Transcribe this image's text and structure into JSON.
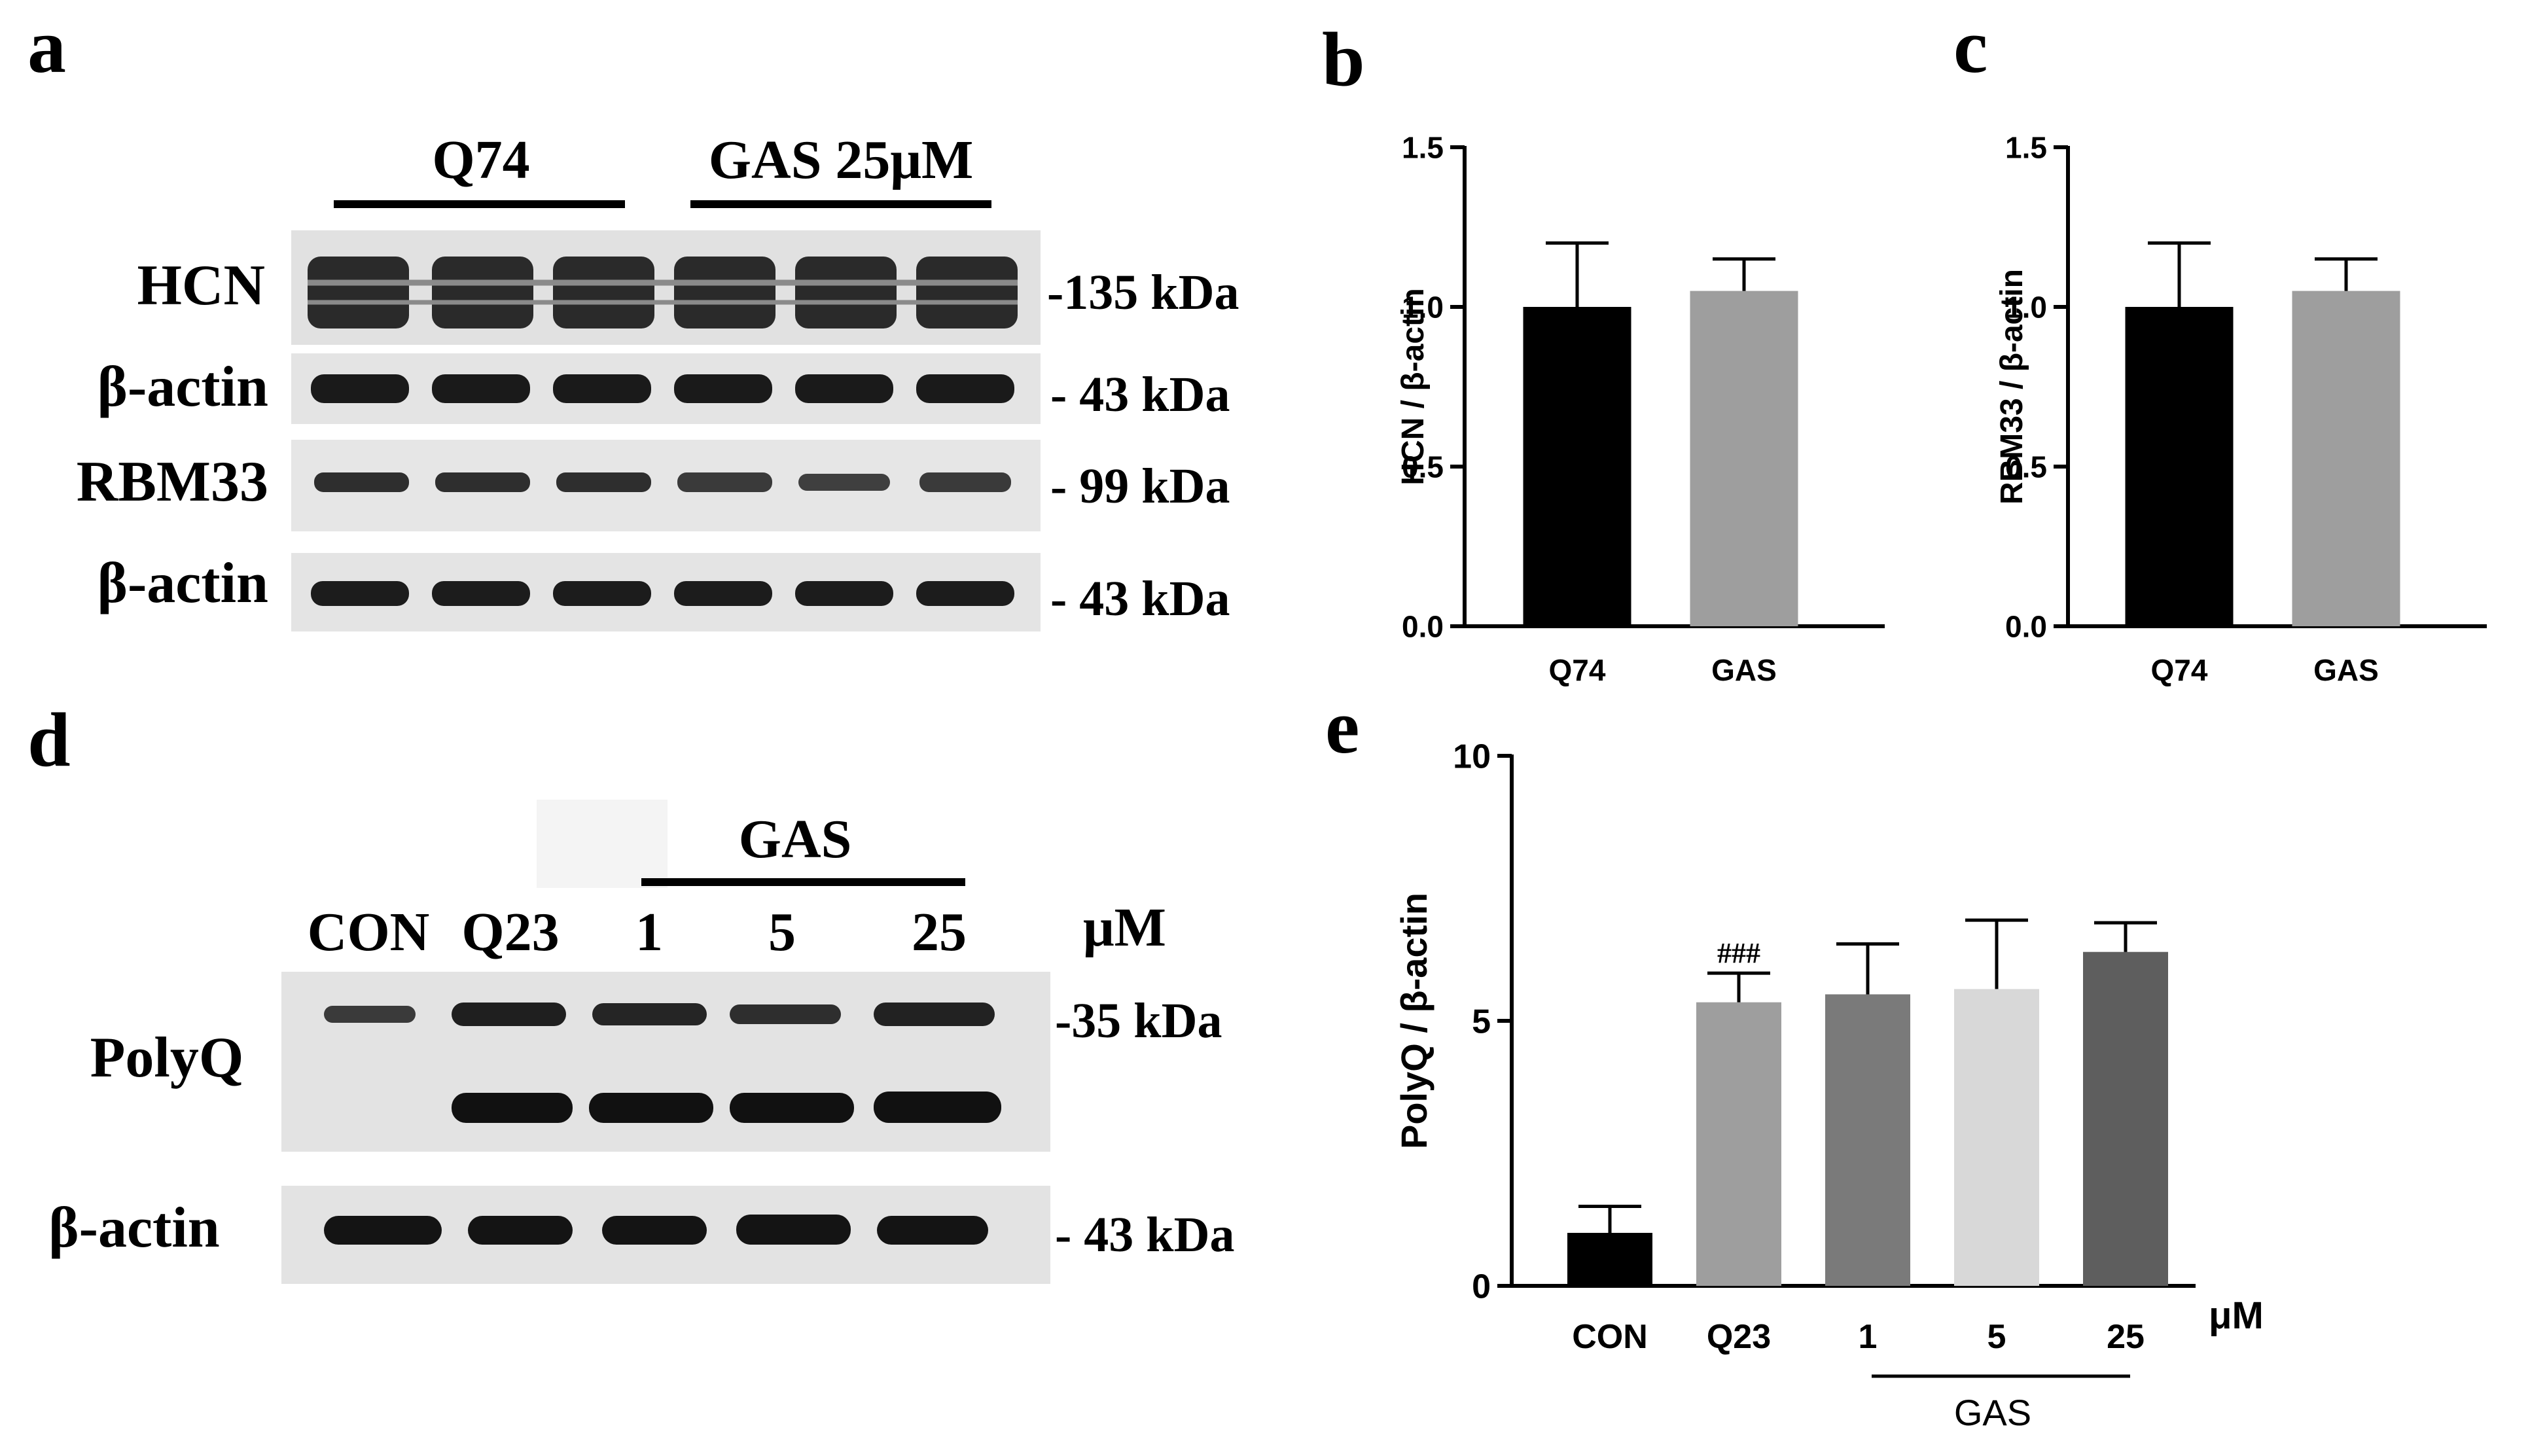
{
  "panel_letters": {
    "a": "a",
    "b": "b",
    "c": "c",
    "d": "d",
    "e": "e"
  },
  "blot_a": {
    "groups": [
      "Q74",
      "GAS 25μM"
    ],
    "rows": [
      {
        "label": "HCN",
        "marker": "-135 kDa"
      },
      {
        "label": "β-actin",
        "marker": "- 43 kDa"
      },
      {
        "label": "RBM33",
        "marker": "- 99 kDa"
      },
      {
        "label": "β-actin",
        "marker": "- 43 kDa"
      }
    ]
  },
  "blot_d": {
    "group_label": "GAS",
    "lanes": [
      "CON",
      "Q23",
      "1",
      "5",
      "25"
    ],
    "unit": "μM",
    "rows": [
      {
        "label": "PolyQ",
        "marker": "-35 kDa"
      },
      {
        "label": "β-actin",
        "marker": "- 43 kDa"
      }
    ]
  },
  "chart_data": [
    {
      "panel": "b",
      "type": "bar",
      "categories": [
        "Q74",
        "GAS"
      ],
      "values": [
        1.0,
        1.05
      ],
      "errors": [
        0.2,
        0.1
      ],
      "colors": [
        "#000000",
        "#9e9e9e"
      ],
      "ylabel": "HCN / β-actin",
      "ylim": [
        0,
        1.5
      ],
      "yticks": [
        "0.0",
        "0.5",
        "1.0",
        "1.5"
      ]
    },
    {
      "panel": "c",
      "type": "bar",
      "categories": [
        "Q74",
        "GAS"
      ],
      "values": [
        1.0,
        1.05
      ],
      "errors": [
        0.2,
        0.1
      ],
      "colors": [
        "#000000",
        "#9e9e9e"
      ],
      "ylabel": "RBM33 / β-actin",
      "ylim": [
        0,
        1.5
      ],
      "yticks": [
        "0.0",
        "0.5",
        "1.0",
        "1.5"
      ]
    },
    {
      "panel": "e",
      "type": "bar",
      "categories": [
        "CON",
        "Q23",
        "1",
        "5",
        "25"
      ],
      "values": [
        1.0,
        5.35,
        5.5,
        5.6,
        6.3
      ],
      "errors": [
        0.5,
        0.55,
        0.95,
        1.3,
        0.55
      ],
      "colors": [
        "#000000",
        "#9e9e9e",
        "#7a7a7a",
        "#d8d8d8",
        "#5e5e5e"
      ],
      "annotations": [
        "",
        "###",
        "",
        "",
        ""
      ],
      "ylabel": "PolyQ / β-actin",
      "ylim": [
        0,
        10
      ],
      "yticks": [
        "0",
        "5",
        "10"
      ],
      "x_unit": "μM",
      "group_label": "GAS"
    }
  ]
}
